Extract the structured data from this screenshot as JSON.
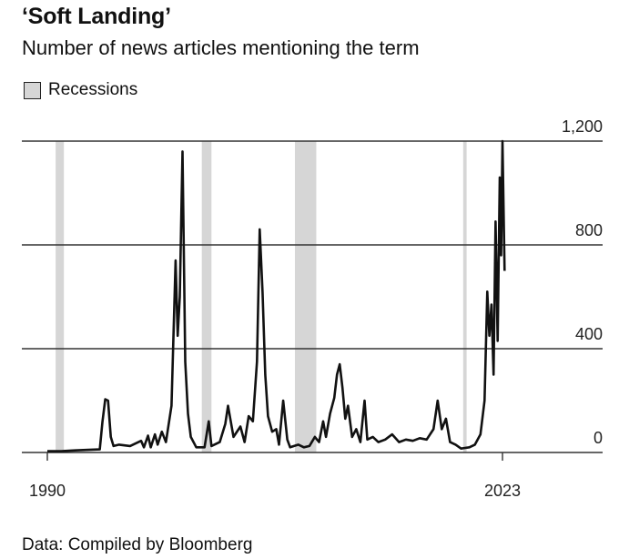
{
  "header": {
    "title": "‘Soft Landing’",
    "subtitle": "Number of news articles mentioning the term"
  },
  "legend": {
    "recessions_label": "Recessions",
    "recessions_color": "#d6d6d6"
  },
  "footer": {
    "source": "Data: Compiled by Bloomberg"
  },
  "chart_data": {
    "type": "line",
    "title": "‘Soft Landing’",
    "subtitle": "Number of news articles mentioning the term",
    "xlim": [
      1990,
      2023.6
    ],
    "ylim": [
      0,
      1200
    ],
    "y_ticks": [
      0,
      400,
      800,
      1200
    ],
    "y_tick_labels": [
      "0",
      "400",
      "800",
      "1,200"
    ],
    "x_tick_labels": [
      "1990",
      "2023"
    ],
    "x_tick_values": [
      1990,
      2023
    ],
    "grid": "horizontal",
    "line_color": "#111111",
    "recessions": [
      {
        "start": 1990.6,
        "end": 1991.2
      },
      {
        "start": 2001.2,
        "end": 2001.9
      },
      {
        "start": 2007.95,
        "end": 2009.5
      },
      {
        "start": 2020.15,
        "end": 2020.4
      }
    ],
    "series": [
      {
        "points": [
          [
            1990.0,
            5
          ],
          [
            1991.0,
            5
          ],
          [
            1992.0,
            8
          ],
          [
            1993.0,
            10
          ],
          [
            1993.8,
            12
          ],
          [
            1994.0,
            120
          ],
          [
            1994.2,
            205
          ],
          [
            1994.4,
            200
          ],
          [
            1994.6,
            60
          ],
          [
            1994.8,
            25
          ],
          [
            1995.2,
            30
          ],
          [
            1996.0,
            25
          ],
          [
            1996.8,
            45
          ],
          [
            1997.0,
            20
          ],
          [
            1997.3,
            65
          ],
          [
            1997.5,
            20
          ],
          [
            1997.8,
            70
          ],
          [
            1998.0,
            30
          ],
          [
            1998.3,
            80
          ],
          [
            1998.6,
            40
          ],
          [
            1999.0,
            180
          ],
          [
            1999.3,
            740
          ],
          [
            1999.45,
            450
          ],
          [
            1999.6,
            600
          ],
          [
            1999.8,
            1160
          ],
          [
            2000.0,
            350
          ],
          [
            2000.2,
            150
          ],
          [
            2000.4,
            60
          ],
          [
            2000.8,
            20
          ],
          [
            2001.4,
            20
          ],
          [
            2001.7,
            120
          ],
          [
            2001.9,
            25
          ],
          [
            2002.5,
            40
          ],
          [
            2002.9,
            110
          ],
          [
            2003.1,
            180
          ],
          [
            2003.3,
            120
          ],
          [
            2003.5,
            60
          ],
          [
            2004.0,
            100
          ],
          [
            2004.3,
            40
          ],
          [
            2004.6,
            140
          ],
          [
            2004.9,
            120
          ],
          [
            2005.2,
            350
          ],
          [
            2005.4,
            860
          ],
          [
            2005.6,
            620
          ],
          [
            2005.8,
            300
          ],
          [
            2006.0,
            140
          ],
          [
            2006.3,
            80
          ],
          [
            2006.6,
            90
          ],
          [
            2006.8,
            30
          ],
          [
            2007.1,
            200
          ],
          [
            2007.4,
            50
          ],
          [
            2007.6,
            20
          ],
          [
            2008.2,
            30
          ],
          [
            2008.6,
            20
          ],
          [
            2009.0,
            25
          ],
          [
            2009.4,
            60
          ],
          [
            2009.7,
            40
          ],
          [
            2010.0,
            120
          ],
          [
            2010.2,
            60
          ],
          [
            2010.5,
            150
          ],
          [
            2010.8,
            210
          ],
          [
            2011.0,
            300
          ],
          [
            2011.2,
            340
          ],
          [
            2011.4,
            250
          ],
          [
            2011.6,
            130
          ],
          [
            2011.8,
            180
          ],
          [
            2012.1,
            60
          ],
          [
            2012.4,
            90
          ],
          [
            2012.7,
            40
          ],
          [
            2013.0,
            200
          ],
          [
            2013.2,
            50
          ],
          [
            2013.6,
            60
          ],
          [
            2014.0,
            40
          ],
          [
            2014.5,
            50
          ],
          [
            2015.0,
            70
          ],
          [
            2015.5,
            40
          ],
          [
            2016.0,
            50
          ],
          [
            2016.5,
            45
          ],
          [
            2017.0,
            55
          ],
          [
            2017.5,
            50
          ],
          [
            2018.0,
            90
          ],
          [
            2018.3,
            200
          ],
          [
            2018.6,
            90
          ],
          [
            2018.9,
            130
          ],
          [
            2019.2,
            40
          ],
          [
            2019.6,
            30
          ],
          [
            2020.0,
            15
          ],
          [
            2020.6,
            20
          ],
          [
            2021.0,
            30
          ],
          [
            2021.4,
            70
          ],
          [
            2021.7,
            200
          ],
          [
            2021.9,
            620
          ],
          [
            2022.05,
            450
          ],
          [
            2022.2,
            570
          ],
          [
            2022.35,
            300
          ],
          [
            2022.5,
            890
          ],
          [
            2022.65,
            430
          ],
          [
            2022.8,
            1060
          ],
          [
            2022.9,
            760
          ],
          [
            2023.0,
            1200
          ],
          [
            2023.15,
            700
          ]
        ]
      }
    ]
  }
}
